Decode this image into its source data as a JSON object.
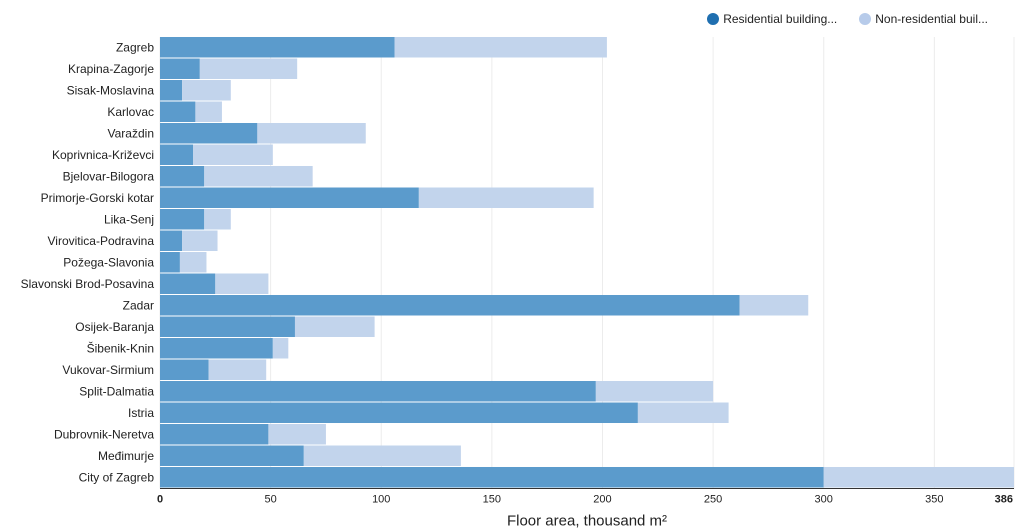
{
  "legend": [
    {
      "label": "Residential building...",
      "color": "#1f6fb0"
    },
    {
      "label": "Non-residential buil...",
      "color": "#b7cbea"
    }
  ],
  "chart_data": {
    "type": "bar",
    "orientation": "horizontal",
    "stacked": true,
    "categories": [
      "Zagreb",
      "Krapina-Zagorje",
      "Sisak-Moslavina",
      "Karlovac",
      "Varaždin",
      "Koprivnica-Križevci",
      "Bjelovar-Bilogora",
      "Primorje-Gorski kotar",
      "Lika-Senj",
      "Virovitica-Podravina",
      "Požega-Slavonia",
      "Slavonski Brod-Posavina",
      "Zadar",
      "Osijek-Baranja",
      "Šibenik-Knin",
      "Vukovar-Sirmium",
      "Split-Dalmatia",
      "Istria",
      "Dubrovnik-Neretva",
      "Međimurje",
      "City of Zagreb"
    ],
    "series": [
      {
        "name": "Residential building...",
        "color": "#5b9bcc",
        "values": [
          106,
          18,
          10,
          16,
          44,
          15,
          20,
          117,
          20,
          10,
          9,
          25,
          262,
          61,
          51,
          22,
          197,
          216,
          49,
          65,
          300
        ]
      },
      {
        "name": "Non-residential buil...",
        "color": "#c2d4ec",
        "values": [
          96,
          44,
          22,
          12,
          49,
          36,
          49,
          79,
          12,
          16,
          12,
          24,
          31,
          36,
          7,
          26,
          53,
          41,
          26,
          71,
          86
        ]
      }
    ],
    "xticks": [
      0,
      50,
      100,
      150,
      200,
      250,
      300,
      350,
      386
    ],
    "xlim": [
      0,
      386
    ],
    "xlabel": "Floor area, thousand m²",
    "legend_position": "top-right",
    "grid": true
  }
}
